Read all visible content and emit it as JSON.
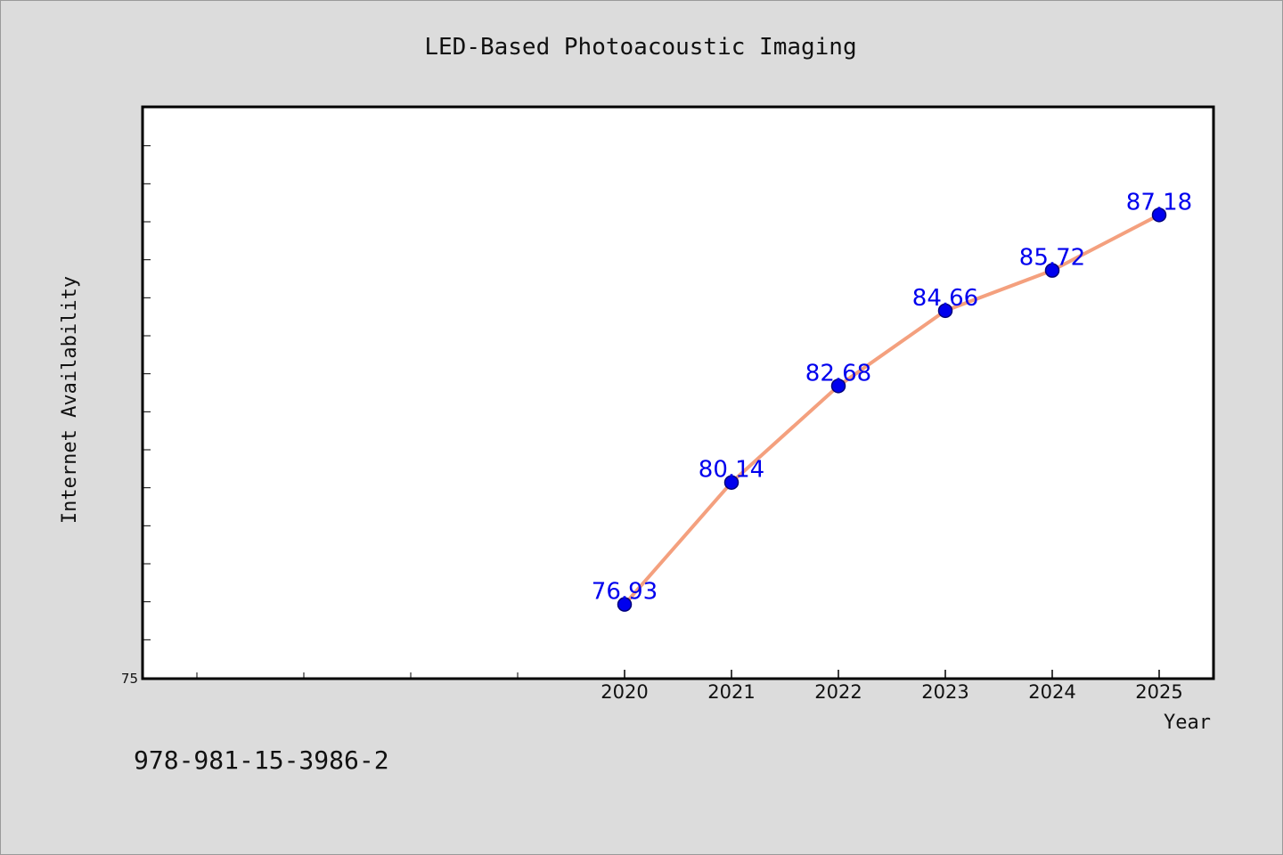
{
  "footer": {
    "isbn": "978-981-15-3986-2"
  },
  "chart_data": {
    "type": "line",
    "title": "LED-Based Photoacoustic Imaging",
    "xlabel": "Year",
    "ylabel": "Internet Availability",
    "x": [
      2020,
      2021,
      2022,
      2023,
      2024,
      2025
    ],
    "x_tick_labels": [
      "2020",
      "2021",
      "2022",
      "2023",
      "2024",
      "2025"
    ],
    "xlim": [
      2015.5,
      2025.5
    ],
    "ylim": [
      75,
      90
    ],
    "y_tick_labels": [
      "75"
    ],
    "series": [
      {
        "values": [
          76.93,
          80.14,
          82.68,
          84.66,
          85.72,
          87.18
        ],
        "data_labels": [
          "76.93",
          "80.14",
          "82.68",
          "84.66",
          "85.72",
          "87.18"
        ]
      }
    ],
    "grid": false,
    "legend": "none",
    "colors": {
      "line": "#f4a07e",
      "marker": "#0000ee",
      "data_label": "#0000ee",
      "plot_background": "#ffffff",
      "page_background": "#dcdcdc"
    }
  }
}
